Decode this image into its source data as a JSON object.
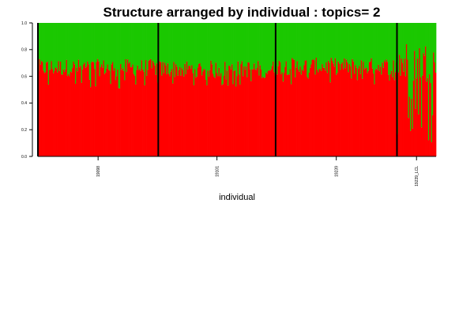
{
  "chart_data": {
    "type": "bar",
    "subtype": "stacked-structure",
    "title": "Structure arranged by individual : topics= 2",
    "xlabel": "individual",
    "ylabel": "",
    "ylim": [
      0,
      1
    ],
    "yticks": [
      "0.0",
      "0.2",
      "0.4",
      "0.6",
      "0.8",
      "1.0"
    ],
    "colors": {
      "topic1": "#ff0000",
      "topic2": "#1ac800",
      "separator": "#000000"
    },
    "groups": [
      {
        "label": "19098",
        "count": 120,
        "topic1_mean": 0.64,
        "topic1_min": 0.5,
        "topic1_max": 0.73
      },
      {
        "label": "19101",
        "count": 117,
        "topic1_mean": 0.63,
        "topic1_min": 0.52,
        "topic1_max": 0.72
      },
      {
        "label": "19239",
        "count": 121,
        "topic1_mean": 0.65,
        "topic1_min": 0.53,
        "topic1_max": 0.74
      },
      {
        "label": "19239_LCL",
        "count": 39,
        "topic1_mean": 0.58,
        "topic1_min": 0.08,
        "topic1_max": 0.86
      }
    ]
  }
}
